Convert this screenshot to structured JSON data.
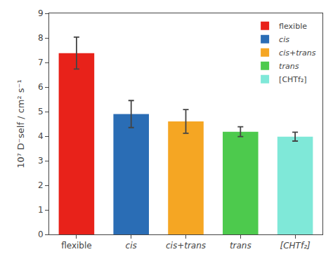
{
  "chart_data": {
    "type": "bar",
    "categories": [
      "flexible",
      "cis",
      "cis+trans",
      "trans",
      "[CHTf₂]"
    ],
    "values": [
      7.38,
      4.9,
      4.6,
      4.18,
      3.98
    ],
    "errors": [
      0.65,
      0.55,
      0.48,
      0.2,
      0.18
    ],
    "colors": [
      "#e8221a",
      "#2a6db5",
      "#f5a623",
      "#4dca4d",
      "#7fe8d8"
    ],
    "ylabel": "10⁷ D⁻self / cm² s⁻¹",
    "ylim": [
      0,
      9
    ],
    "yticks": [
      0,
      1,
      2,
      3,
      4,
      5,
      6,
      7,
      8,
      9
    ],
    "grid": false,
    "legend": "upper right"
  }
}
